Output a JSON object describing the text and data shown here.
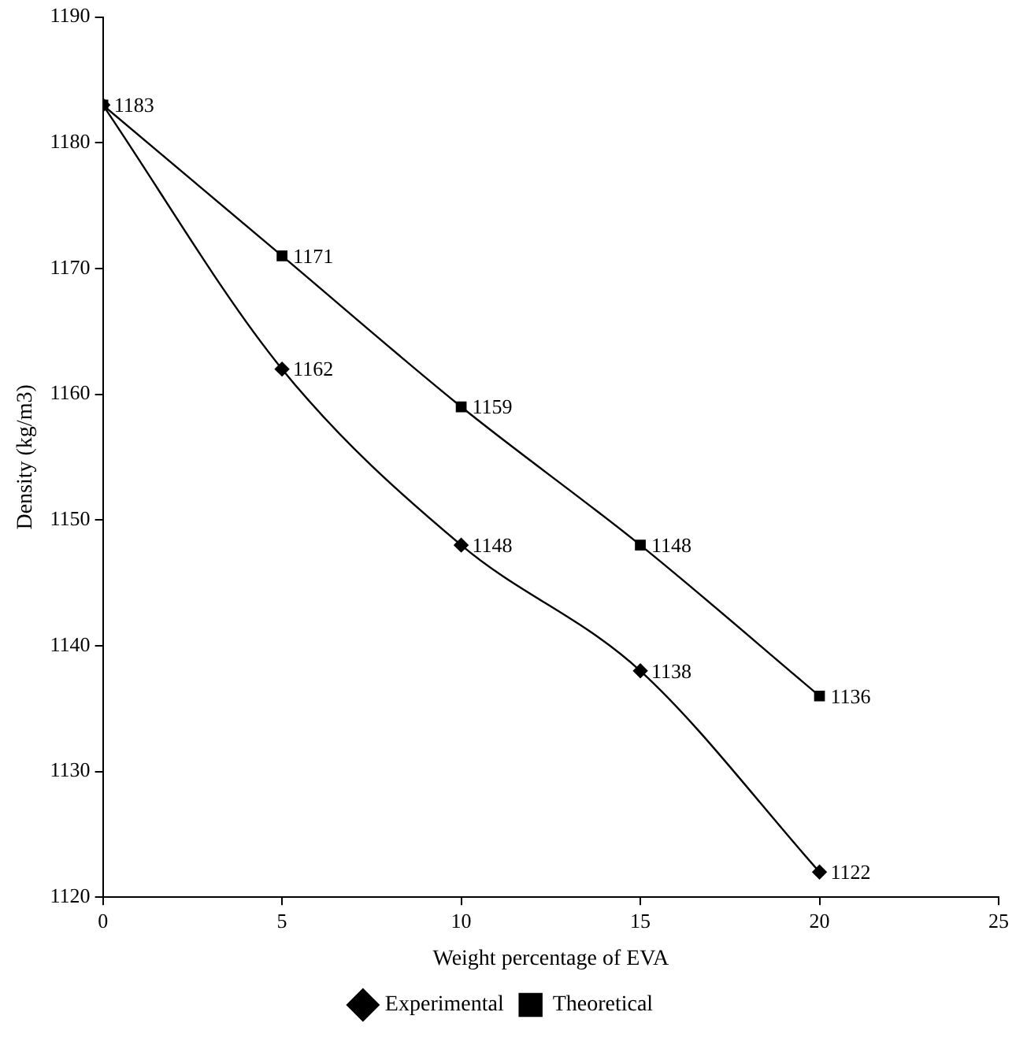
{
  "chart_data": {
    "type": "line",
    "xlabel": "Weight percentage of EVA",
    "ylabel": "Density (kg/m3)",
    "x": [
      0,
      5,
      10,
      15,
      20
    ],
    "series": [
      {
        "name": "Experimental",
        "color": "#000000",
        "marker": "diamond",
        "values": [
          1183,
          1162,
          1148,
          1138,
          1122
        ],
        "value_labels": [
          null,
          "1162",
          "1148",
          "1138",
          "1122"
        ]
      },
      {
        "name": "Theoretical",
        "color": "#000000",
        "marker": "square",
        "values": [
          1183,
          1171,
          1159,
          1148,
          1136
        ],
        "value_labels": [
          "1183",
          "1171",
          "1159",
          "1148",
          "1136"
        ]
      }
    ],
    "xlim": [
      0,
      25
    ],
    "xticks": [
      0,
      5,
      10,
      15,
      20,
      25
    ],
    "ylim": [
      1120,
      1190
    ],
    "yticks": [
      1120,
      1130,
      1140,
      1150,
      1160,
      1170,
      1180,
      1190
    ],
    "grid": false,
    "legend": "bottom"
  }
}
